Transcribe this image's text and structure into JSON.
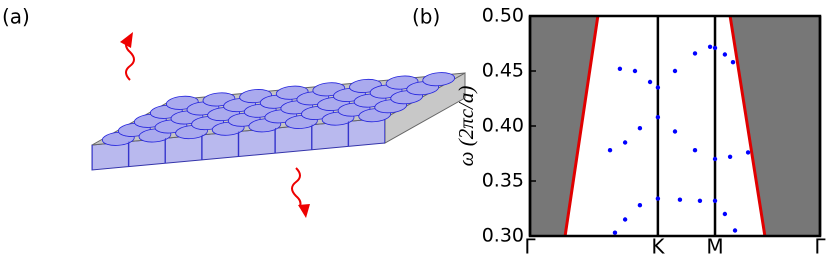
{
  "figure_labels": [
    "(a)",
    "(b)"
  ],
  "chart_data": {
    "type": "scatter",
    "ylabel": "ω  (2πc/a)",
    "xlim": [
      0,
      1
    ],
    "xticks": [
      {
        "value": 0,
        "label": "Γ"
      },
      {
        "value": 0.441,
        "label": "K"
      },
      {
        "value": 0.638,
        "label": "M"
      },
      {
        "value": 1,
        "label": "Γ"
      }
    ],
    "ylim": [
      0.3,
      0.5
    ],
    "yticks": [
      {
        "value": 0.3,
        "label": "0.30"
      },
      0.35,
      {
        "value": 0.4,
        "label": "0.40"
      },
      0.45,
      {
        "value": 0.5,
        "label": "0.50"
      }
    ],
    "series": [
      {
        "color": "#0000ff",
        "x": [
          0.293,
          0.328,
          0.379,
          0.441,
          0.517,
          0.586,
          0.638,
          0.672,
          0.707
        ],
        "values": [
          0.303,
          0.315,
          0.328,
          0.334,
          0.333,
          0.332,
          0.332,
          0.32,
          0.305
        ]
      },
      {
        "color": "#0000ff",
        "x": [
          0.276,
          0.328,
          0.379,
          0.441,
          0.5,
          0.569,
          0.638,
          0.69,
          0.752
        ],
        "values": [
          0.378,
          0.385,
          0.398,
          0.408,
          0.395,
          0.378,
          0.37,
          0.372,
          0.376
        ]
      },
      {
        "color": "#0000ff",
        "x": [
          0.31,
          0.362,
          0.414,
          0.441,
          0.5,
          0.569,
          0.621,
          0.638,
          0.672,
          0.7
        ],
        "values": [
          0.452,
          0.45,
          0.44,
          0.435,
          0.45,
          0.466,
          0.472,
          0.471,
          0.465,
          0.458
        ]
      }
    ],
    "light_lines": [
      {
        "color": "#e00000",
        "fill": "#777777",
        "x": [
          0.234,
          0.121
        ],
        "values": [
          0.5,
          0.3
        ],
        "side": "left"
      },
      {
        "color": "#e00000",
        "fill": "#777777",
        "x": [
          0.69,
          0.81
        ],
        "values": [
          0.5,
          0.3
        ],
        "side": "right"
      }
    ]
  }
}
